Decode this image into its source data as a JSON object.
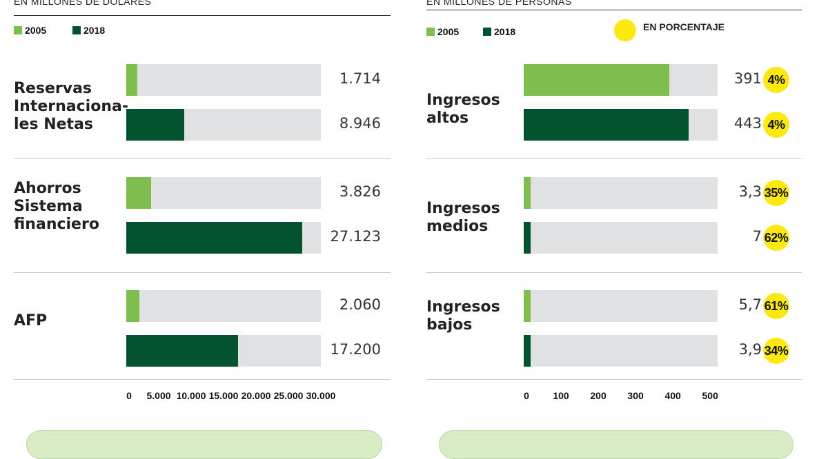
{
  "colors": {
    "series_2005": "#80bd4f",
    "series_2018": "#045330",
    "track": "#e0e1e2",
    "pct_circle": "#fde910"
  },
  "chart_data": [
    {
      "type": "bar",
      "subtitle": "EN MILLONES DE DÓLARES",
      "legend": [
        "2005",
        "2018"
      ],
      "categories": [
        "Reservas\nInternaciona-\nles Netas",
        "Ahorros\nSistema\nfinanciero",
        "AFP"
      ],
      "series": [
        {
          "name": "2005",
          "values": [
            1714,
            3826,
            2060
          ],
          "labels": [
            "1.714",
            "3.826",
            "2.060"
          ]
        },
        {
          "name": "2018",
          "values": [
            8946,
            27123,
            17200
          ],
          "labels": [
            "8.946",
            "27.123",
            "17.200"
          ]
        }
      ],
      "xlim": [
        0,
        30000
      ],
      "ticks": [
        "0",
        "5.000",
        "10.000",
        "15.000",
        "20.000",
        "25.000",
        "30.000"
      ]
    },
    {
      "type": "bar",
      "subtitle": "EN MILLONES DE PERSONAS",
      "legend": [
        "2005",
        "2018"
      ],
      "percent_legend": "EN PORCENTAJE",
      "categories": [
        "Ingresos\naltos",
        "Ingresos\nmedios",
        "Ingresos\nbajos"
      ],
      "series": [
        {
          "name": "2005",
          "values": [
            391,
            3.3,
            5.7
          ],
          "labels": [
            "391",
            "3,3",
            "5,7"
          ],
          "percents": [
            "4%",
            "35%",
            "61%"
          ]
        },
        {
          "name": "2018",
          "values": [
            443,
            7,
            3.9
          ],
          "labels": [
            "443",
            "7",
            "3,9"
          ],
          "percents": [
            "4%",
            "62%",
            "34%"
          ]
        }
      ],
      "xlim": [
        0,
        520
      ],
      "ticks": [
        "0",
        "100",
        "200",
        "300",
        "400",
        "500"
      ]
    }
  ]
}
